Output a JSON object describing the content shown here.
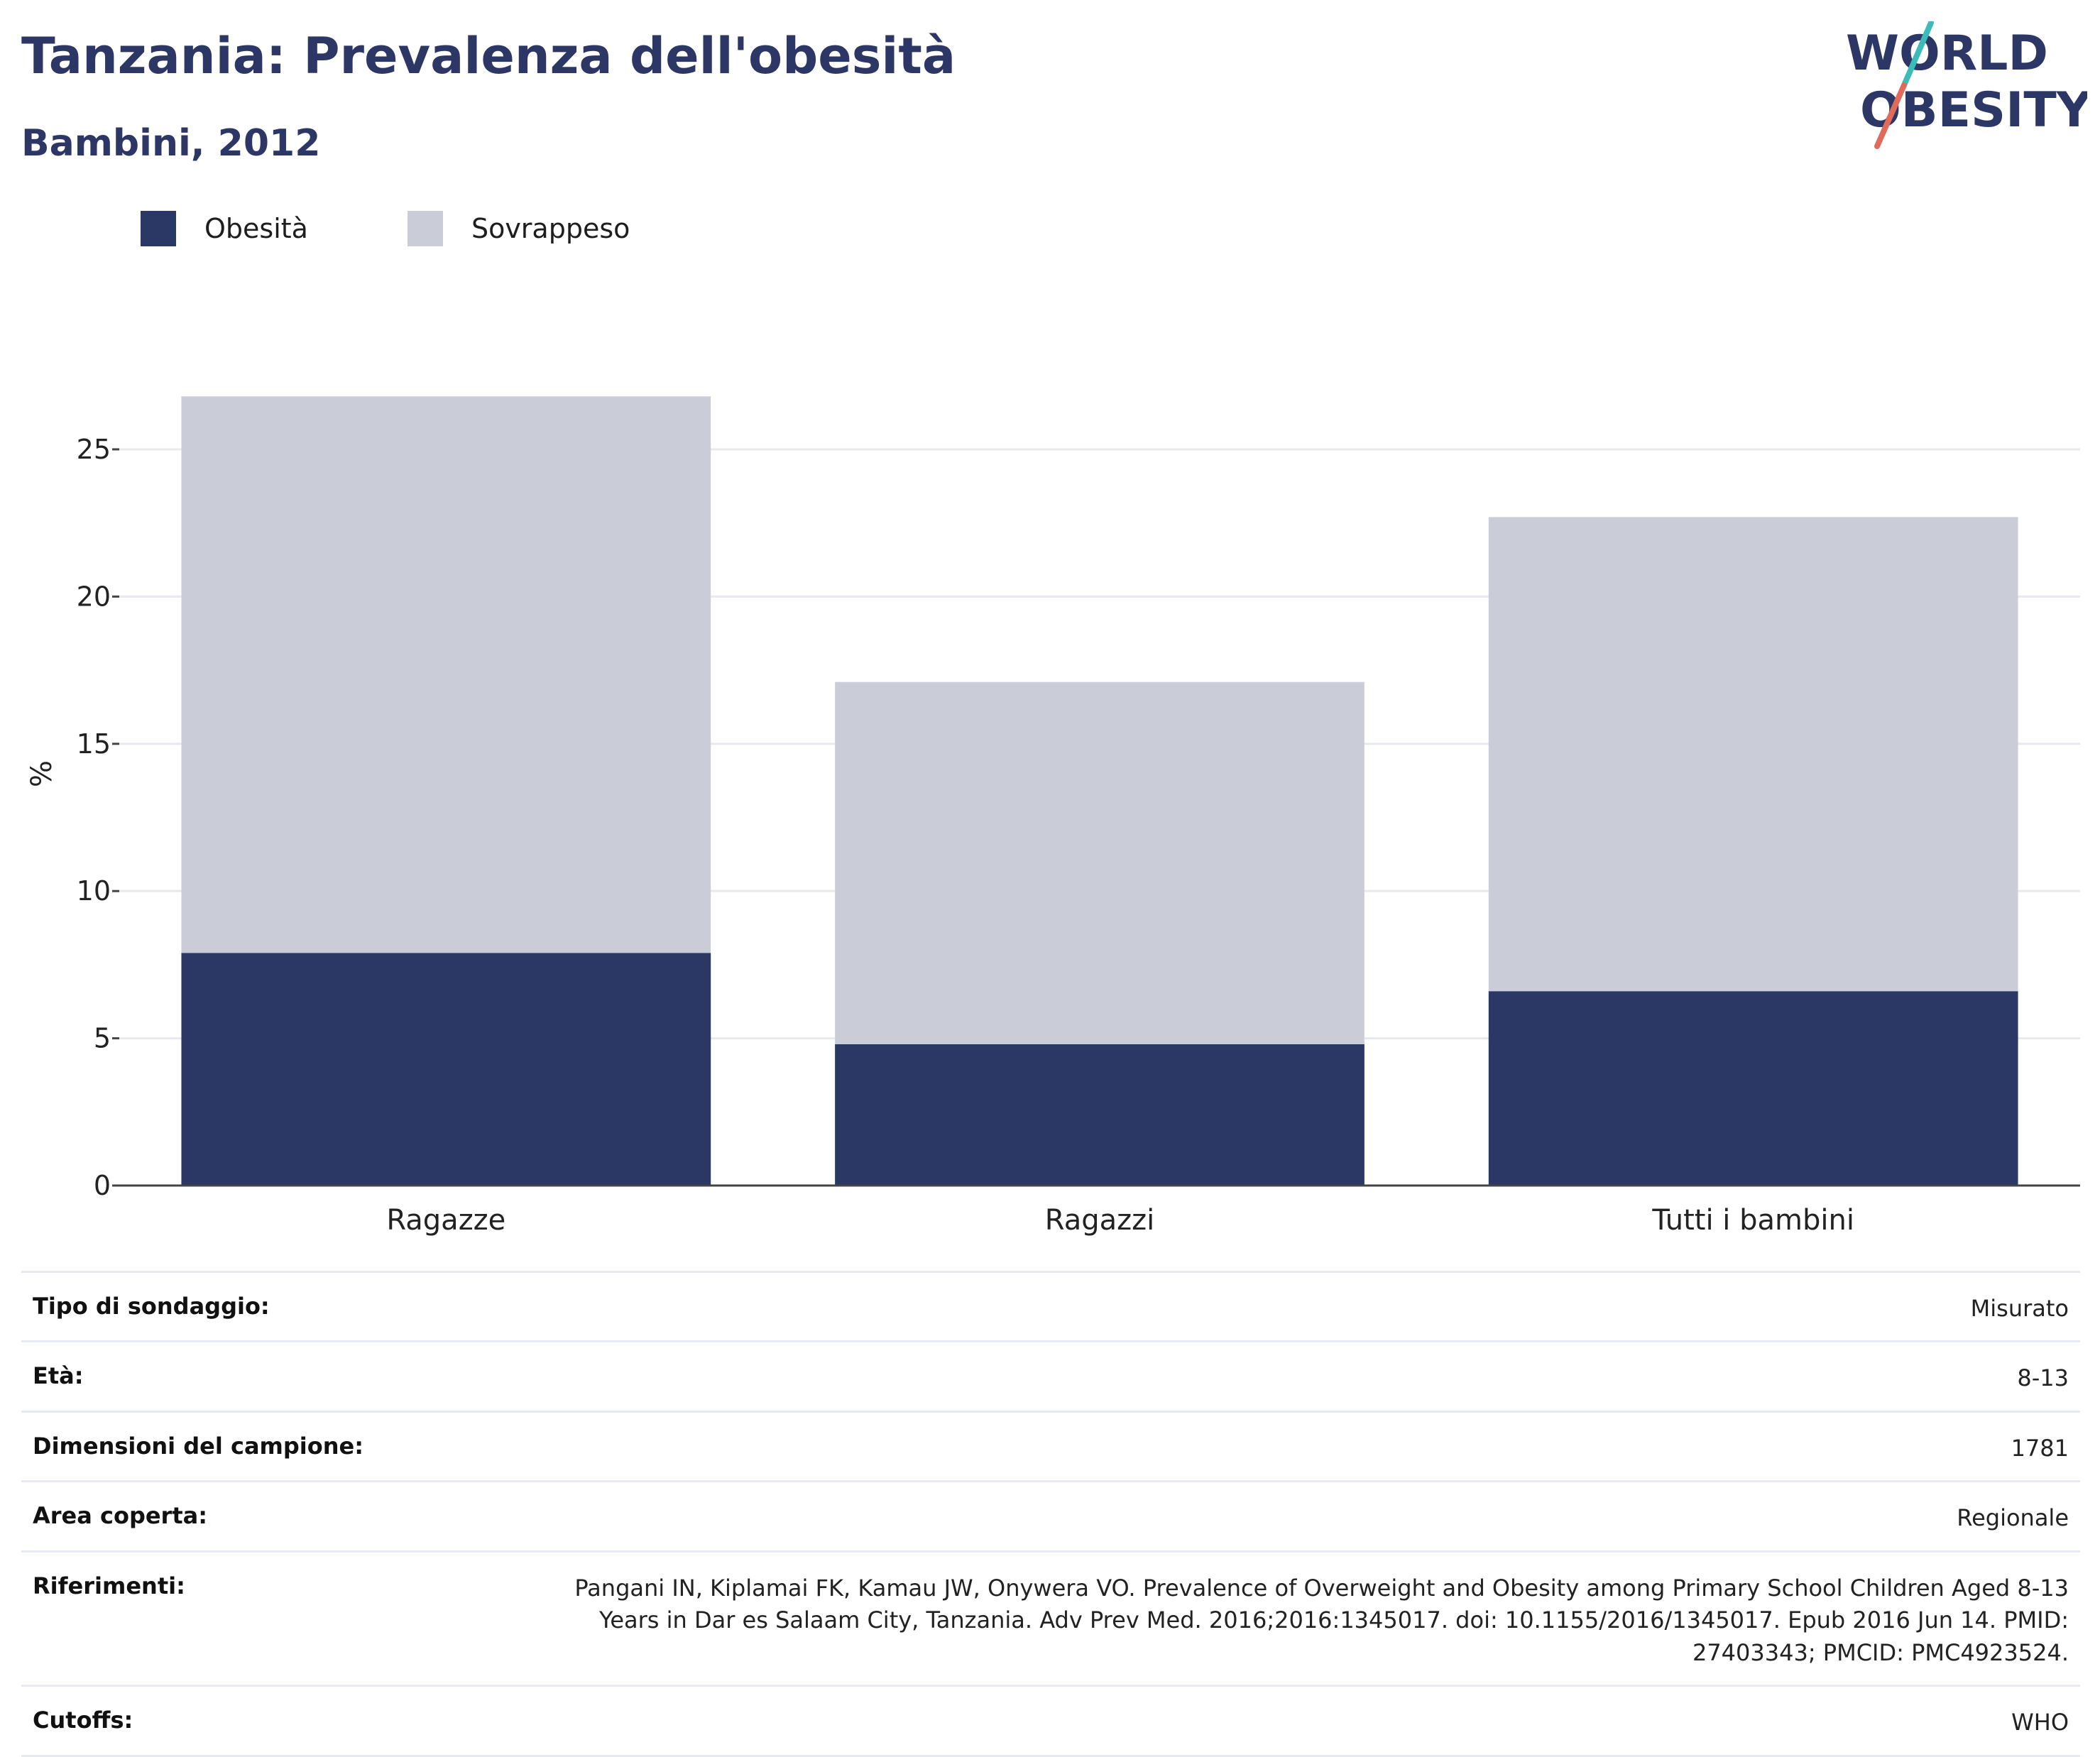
{
  "header": {
    "title": "Tanzania: Prevalenza dell'obesità",
    "subtitle": "Bambini, 2012"
  },
  "logo": {
    "line1": "WORLD",
    "line2": "OBESITY",
    "colors": {
      "text": "#2c3766",
      "slash_top": "#3bbcb8",
      "slash_bottom": "#e26a5b"
    }
  },
  "legend": [
    {
      "label": "Obesità",
      "color": "#2b3765"
    },
    {
      "label": "Sovrappeso",
      "color": "#cacdd8"
    }
  ],
  "chart_data": {
    "type": "bar",
    "stacked": true,
    "categories": [
      "Ragazze",
      "Ragazzi",
      "Tutti i bambini"
    ],
    "series": [
      {
        "name": "Obesità",
        "values": [
          7.9,
          4.8,
          6.6
        ],
        "color": "#2b3765"
      },
      {
        "name": "Sovrappeso",
        "values": [
          18.9,
          12.3,
          16.1
        ],
        "color": "#cacdd8"
      }
    ],
    "ylabel": "%",
    "ylim": [
      0,
      27
    ],
    "yticks": [
      0,
      5,
      10,
      15,
      20,
      25
    ],
    "grid": true,
    "legend_position": "top-left"
  },
  "info": [
    {
      "key": "Tipo di sondaggio:",
      "value": "Misurato"
    },
    {
      "key": "Età:",
      "value": "8-13"
    },
    {
      "key": "Dimensioni del campione:",
      "value": "1781"
    },
    {
      "key": "Area coperta:",
      "value": "Regionale"
    },
    {
      "key": "Riferimenti:",
      "value": "Pangani IN, Kiplamai FK, Kamau JW, Onywera VO. Prevalence of Overweight and Obesity among Primary School Children Aged 8-13 Years in Dar es Salaam City, Tanzania. Adv Prev Med. 2016;2016:1345017. doi: 10.1155/2016/1345017. Epub 2016 Jun 14. PMID: 27403343; PMCID: PMC4923524."
    },
    {
      "key": "Cutoffs:",
      "value": "WHO"
    }
  ]
}
